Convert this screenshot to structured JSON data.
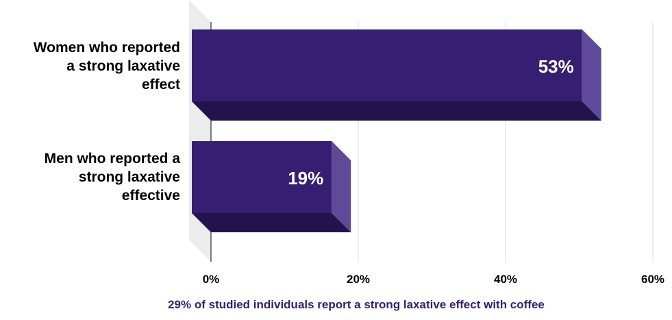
{
  "chart_data": {
    "type": "bar",
    "orientation": "horizontal",
    "categories": [
      "Women who reported a strong laxative effect",
      "Men who reported a strong laxative effect​ive"
    ],
    "category_lines": [
      [
        "Women who reported",
        "a strong laxative",
        "effect"
      ],
      [
        "Men who reported a",
        "strong laxative",
        "effective"
      ]
    ],
    "values": [
      53,
      19
    ],
    "data_labels": [
      "53%",
      "19%"
    ],
    "xlim": [
      0,
      60
    ],
    "x_ticks": [
      0,
      20,
      40,
      60
    ],
    "x_tick_labels": [
      "0%",
      "20%",
      "40%",
      "60%"
    ],
    "grid": true,
    "legend": "none",
    "caption": "29% of studied individuals report a strong laxative effect with coffee"
  },
  "colors": {
    "bar_front": "#361e72",
    "bar_side": "#5f4a9a",
    "bar_bottom": "#23134c",
    "wall": "#ececec",
    "grid": "#d9d9d9",
    "caption": "#361e72"
  }
}
